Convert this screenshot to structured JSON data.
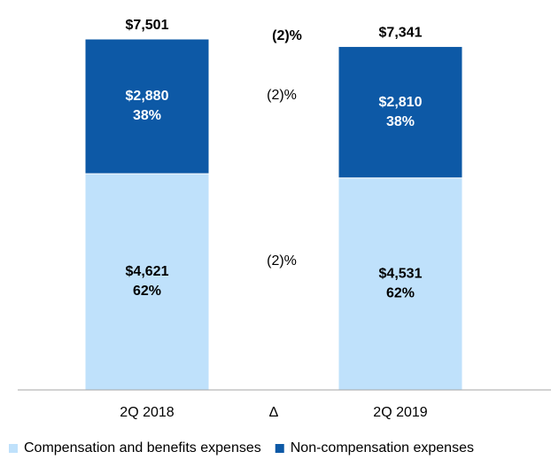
{
  "chart_data": {
    "type": "bar",
    "stacked": true,
    "categories": [
      "2Q 2018",
      "2Q 2019"
    ],
    "totals": [
      "$7,501",
      "$7,341"
    ],
    "series": [
      {
        "name": "Compensation and benefits expenses",
        "values": [
          4621,
          4531
        ],
        "value_labels": [
          "$4,621",
          "$4,531"
        ],
        "pct_labels": [
          "62%",
          "62%"
        ],
        "change_label": "(2)%",
        "color": "#bfe1fb"
      },
      {
        "name": "Non-compensation expenses",
        "values": [
          2880,
          2810
        ],
        "value_labels": [
          "$2,880",
          "$2,810"
        ],
        "pct_labels": [
          "38%",
          "38%"
        ],
        "change_label": "(2)%",
        "color": "#0d59a6"
      }
    ],
    "delta_header": "Δ",
    "total_change_label": "(2)%",
    "ylim": [
      0,
      7501
    ],
    "xlabel": "",
    "ylabel": "",
    "title": "",
    "legend_position": "bottom"
  }
}
